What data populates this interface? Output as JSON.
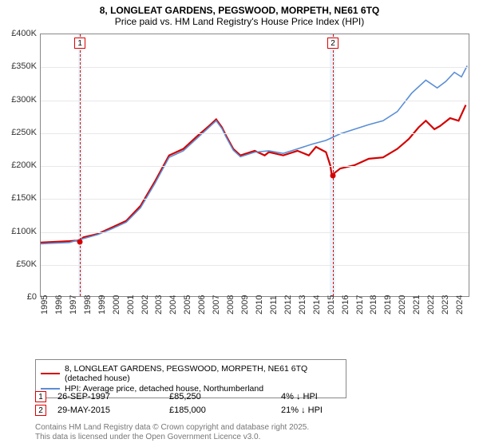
{
  "title_line1": "8, LONGLEAT GARDENS, PEGSWOOD, MORPETH, NE61 6TQ",
  "title_line2": "Price paid vs. HM Land Registry's House Price Index (HPI)",
  "chart": {
    "type": "line",
    "background_color": "#ffffff",
    "grid_color": "#e8e8e8",
    "border_color": "#888888",
    "x_years": [
      "1995",
      "1996",
      "1997",
      "1998",
      "1999",
      "2000",
      "2001",
      "2002",
      "2003",
      "2004",
      "2005",
      "2006",
      "2007",
      "2008",
      "2009",
      "2010",
      "2011",
      "2012",
      "2013",
      "2014",
      "2015",
      "2016",
      "2017",
      "2018",
      "2019",
      "2020",
      "2021",
      "2022",
      "2023",
      "2024"
    ],
    "y_ticks": [
      0,
      50000,
      100000,
      150000,
      200000,
      250000,
      300000,
      350000,
      400000
    ],
    "y_tick_labels": [
      "£0",
      "£50K",
      "£100K",
      "£150K",
      "£200K",
      "£250K",
      "£300K",
      "£350K",
      "£400K"
    ],
    "ylim": [
      0,
      400000
    ],
    "xlim": [
      1995,
      2025
    ],
    "shade_ranges": [
      {
        "from": 1997.6,
        "to": 1997.9
      },
      {
        "from": 2015.2,
        "to": 2015.6
      }
    ],
    "sale_markers": [
      {
        "num": "1",
        "year": 1997.74,
        "price": 85250,
        "top_offset": 4
      },
      {
        "num": "2",
        "year": 2015.41,
        "price": 185000,
        "top_offset": 4
      }
    ],
    "series": [
      {
        "name": "price_paid",
        "color": "#d40000",
        "width": 2.2,
        "points": [
          [
            1995,
            82000
          ],
          [
            1996,
            83000
          ],
          [
            1997,
            84000
          ],
          [
            1997.74,
            85250
          ],
          [
            1998,
            90000
          ],
          [
            1999,
            95000
          ],
          [
            2000,
            105000
          ],
          [
            2001,
            115000
          ],
          [
            2002,
            138000
          ],
          [
            2003,
            175000
          ],
          [
            2004,
            215000
          ],
          [
            2005,
            225000
          ],
          [
            2006,
            245000
          ],
          [
            2006.8,
            260000
          ],
          [
            2007.3,
            270000
          ],
          [
            2007.7,
            258000
          ],
          [
            2008,
            245000
          ],
          [
            2008.5,
            225000
          ],
          [
            2009,
            215000
          ],
          [
            2010,
            222000
          ],
          [
            2010.7,
            215000
          ],
          [
            2011,
            220000
          ],
          [
            2012,
            215000
          ],
          [
            2013,
            222000
          ],
          [
            2013.8,
            215000
          ],
          [
            2014.3,
            228000
          ],
          [
            2015,
            220000
          ],
          [
            2015.3,
            200000
          ],
          [
            2015.41,
            185000
          ],
          [
            2016,
            195000
          ],
          [
            2017,
            200000
          ],
          [
            2018,
            210000
          ],
          [
            2019,
            212000
          ],
          [
            2020,
            225000
          ],
          [
            2020.8,
            240000
          ],
          [
            2021.5,
            258000
          ],
          [
            2022,
            268000
          ],
          [
            2022.6,
            255000
          ],
          [
            2023,
            260000
          ],
          [
            2023.7,
            272000
          ],
          [
            2024.3,
            268000
          ],
          [
            2024.8,
            292000
          ]
        ]
      },
      {
        "name": "hpi",
        "color": "#5b8fd6",
        "width": 1.6,
        "points": [
          [
            1995,
            80000
          ],
          [
            1996,
            81000
          ],
          [
            1997,
            82000
          ],
          [
            1998,
            88000
          ],
          [
            1999,
            94000
          ],
          [
            2000,
            103000
          ],
          [
            2001,
            113000
          ],
          [
            2002,
            135000
          ],
          [
            2003,
            172000
          ],
          [
            2004,
            212000
          ],
          [
            2005,
            222000
          ],
          [
            2006,
            242000
          ],
          [
            2006.8,
            258000
          ],
          [
            2007.3,
            268000
          ],
          [
            2007.7,
            256000
          ],
          [
            2008,
            243000
          ],
          [
            2008.5,
            223000
          ],
          [
            2009,
            213000
          ],
          [
            2010,
            220000
          ],
          [
            2011,
            222000
          ],
          [
            2012,
            218000
          ],
          [
            2013,
            225000
          ],
          [
            2014,
            232000
          ],
          [
            2015,
            238000
          ],
          [
            2016,
            248000
          ],
          [
            2017,
            255000
          ],
          [
            2018,
            262000
          ],
          [
            2019,
            268000
          ],
          [
            2020,
            282000
          ],
          [
            2021,
            310000
          ],
          [
            2022,
            330000
          ],
          [
            2022.8,
            318000
          ],
          [
            2023.4,
            328000
          ],
          [
            2024,
            342000
          ],
          [
            2024.5,
            335000
          ],
          [
            2024.9,
            352000
          ]
        ]
      }
    ]
  },
  "legend": {
    "items": [
      {
        "color": "#d40000",
        "width": 2.5,
        "label": "8, LONGLEAT GARDENS, PEGSWOOD, MORPETH, NE61 6TQ (detached house)"
      },
      {
        "color": "#5b8fd6",
        "width": 1.8,
        "label": "HPI: Average price, detached house, Northumberland"
      }
    ]
  },
  "sales": [
    {
      "num": "1",
      "date": "26-SEP-1997",
      "price": "£85,250",
      "delta": "4% ↓ HPI"
    },
    {
      "num": "2",
      "date": "29-MAY-2015",
      "price": "£185,000",
      "delta": "21% ↓ HPI"
    }
  ],
  "footnote_line1": "Contains HM Land Registry data © Crown copyright and database right 2025.",
  "footnote_line2": "This data is licensed under the Open Government Licence v3.0."
}
